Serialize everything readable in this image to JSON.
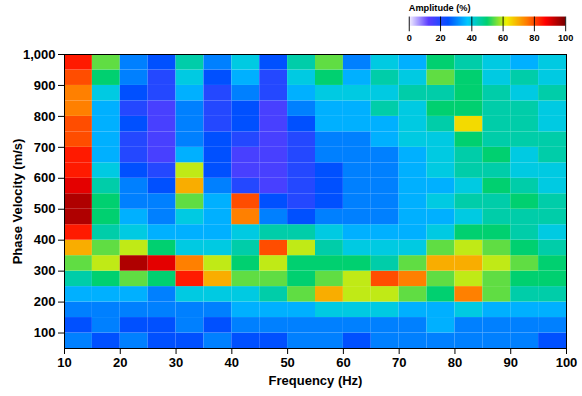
{
  "chart_data": {
    "type": "heatmap",
    "x_label": "Frequency (Hz)",
    "y_label": "Phase Velocity (m/s)",
    "xlim": [
      10,
      100
    ],
    "ylim": [
      50,
      1000
    ],
    "xticks": [
      10,
      20,
      30,
      40,
      50,
      60,
      70,
      80,
      90,
      100
    ],
    "yticks": [
      100,
      200,
      300,
      400,
      500,
      600,
      700,
      800,
      900,
      {
        "value": 1000,
        "label": "1,000"
      }
    ],
    "x_bins": [
      10,
      15,
      20,
      25,
      30,
      35,
      40,
      45,
      50,
      55,
      60,
      65,
      70,
      75,
      80,
      85,
      90,
      95,
      100
    ],
    "y_bins": [
      50,
      100,
      150,
      200,
      250,
      300,
      350,
      400,
      450,
      500,
      550,
      600,
      650,
      700,
      750,
      800,
      850,
      900,
      950,
      1000
    ],
    "z": [
      [
        30,
        25,
        30,
        25,
        25,
        30,
        25,
        25,
        30,
        30,
        25,
        30,
        30,
        30,
        30,
        30,
        30,
        25
      ],
      [
        25,
        30,
        25,
        25,
        30,
        25,
        30,
        30,
        30,
        30,
        30,
        30,
        30,
        35,
        30,
        30,
        30,
        30
      ],
      [
        30,
        30,
        30,
        30,
        30,
        30,
        35,
        35,
        35,
        40,
        40,
        40,
        35,
        35,
        40,
        35,
        35,
        35
      ],
      [
        35,
        35,
        35,
        30,
        40,
        40,
        40,
        45,
        55,
        70,
        60,
        60,
        55,
        50,
        75,
        55,
        45,
        45
      ],
      [
        45,
        50,
        55,
        50,
        85,
        70,
        55,
        55,
        50,
        55,
        60,
        80,
        75,
        55,
        60,
        55,
        50,
        50
      ],
      [
        55,
        60,
        95,
        90,
        75,
        60,
        50,
        60,
        50,
        50,
        50,
        45,
        55,
        70,
        70,
        60,
        55,
        50
      ],
      [
        70,
        55,
        60,
        50,
        40,
        40,
        45,
        80,
        60,
        45,
        40,
        40,
        40,
        55,
        60,
        55,
        50,
        45
      ],
      [
        85,
        45,
        40,
        35,
        35,
        35,
        40,
        45,
        45,
        40,
        35,
        35,
        35,
        40,
        50,
        50,
        45,
        40
      ],
      [
        95,
        50,
        35,
        30,
        40,
        35,
        75,
        30,
        25,
        30,
        30,
        30,
        35,
        35,
        40,
        45,
        45,
        45
      ],
      [
        95,
        50,
        30,
        30,
        55,
        35,
        80,
        25,
        20,
        25,
        30,
        30,
        35,
        40,
        45,
        45,
        50,
        45
      ],
      [
        90,
        45,
        30,
        25,
        70,
        30,
        20,
        15,
        20,
        25,
        30,
        30,
        35,
        35,
        40,
        50,
        45,
        40
      ],
      [
        85,
        40,
        25,
        20,
        60,
        25,
        15,
        15,
        20,
        25,
        30,
        30,
        35,
        40,
        45,
        45,
        40,
        40
      ],
      [
        85,
        35,
        20,
        15,
        35,
        25,
        15,
        15,
        20,
        30,
        30,
        30,
        35,
        40,
        45,
        50,
        40,
        45
      ],
      [
        80,
        35,
        20,
        15,
        30,
        25,
        20,
        15,
        20,
        30,
        30,
        35,
        40,
        40,
        50,
        45,
        45,
        45
      ],
      [
        80,
        35,
        25,
        15,
        30,
        20,
        25,
        15,
        25,
        35,
        35,
        35,
        40,
        45,
        65,
        45,
        45,
        40
      ],
      [
        75,
        35,
        20,
        15,
        30,
        20,
        25,
        15,
        30,
        35,
        35,
        45,
        40,
        50,
        50,
        45,
        45,
        40
      ],
      [
        75,
        40,
        25,
        20,
        35,
        20,
        30,
        20,
        35,
        40,
        40,
        40,
        45,
        45,
        50,
        45,
        40,
        45
      ],
      [
        80,
        50,
        30,
        20,
        40,
        25,
        35,
        20,
        40,
        50,
        35,
        45,
        40,
        55,
        50,
        40,
        45,
        40
      ],
      [
        85,
        55,
        30,
        25,
        45,
        30,
        40,
        25,
        45,
        55,
        30,
        40,
        35,
        50,
        45,
        40,
        35,
        40
      ]
    ],
    "colorbar": {
      "range": [
        0,
        100
      ],
      "ticks": [
        0,
        20,
        40,
        60,
        80,
        100
      ],
      "label": "Amplitude (%)"
    }
  }
}
